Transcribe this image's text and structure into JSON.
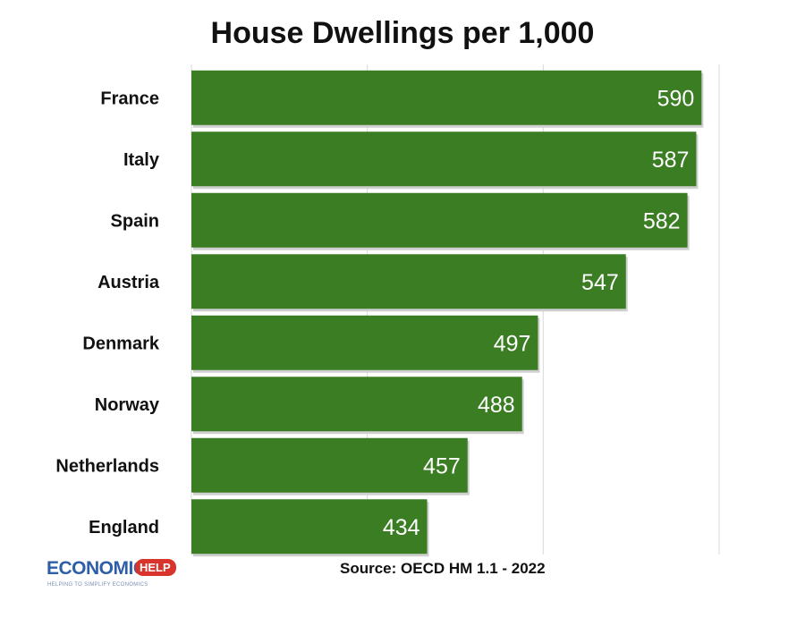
{
  "chart_data": {
    "type": "bar",
    "orientation": "horizontal",
    "title": "House Dwellings per 1,000",
    "categories": [
      "France",
      "Italy",
      "Spain",
      "Austria",
      "Denmark",
      "Norway",
      "Netherlands",
      "England"
    ],
    "values": [
      590,
      587,
      582,
      547,
      497,
      488,
      457,
      434
    ],
    "xlim": [
      300,
      600
    ],
    "grid": true,
    "legend": "none",
    "bar_color": "#3a7d23",
    "data_labels": true
  },
  "source": "Source: OECD HM 1.1 - 2022",
  "logo": {
    "word": "ECONOMICS",
    "badge": "HELP",
    "tagline": "HELPING TO SIMPLIFY ECONOMICS"
  }
}
